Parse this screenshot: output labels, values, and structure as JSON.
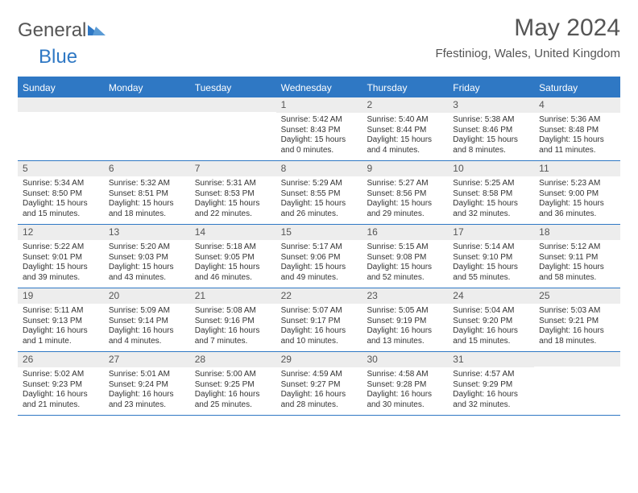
{
  "logo": {
    "text1": "General",
    "text2": "Blue"
  },
  "header": {
    "month_title": "May 2024",
    "location": "Ffestiniog, Wales, United Kingdom"
  },
  "colors": {
    "accent": "#2f78c4",
    "header_bg": "#ededed",
    "page_bg": "#ffffff",
    "text": "#333333",
    "muted": "#555555"
  },
  "calendar": {
    "type": "table",
    "days_of_week": [
      "Sunday",
      "Monday",
      "Tuesday",
      "Wednesday",
      "Thursday",
      "Friday",
      "Saturday"
    ],
    "weeks": [
      [
        {
          "day": "",
          "sunrise": "",
          "sunset": "",
          "daylight": ""
        },
        {
          "day": "",
          "sunrise": "",
          "sunset": "",
          "daylight": ""
        },
        {
          "day": "",
          "sunrise": "",
          "sunset": "",
          "daylight": ""
        },
        {
          "day": "1",
          "sunrise": "Sunrise: 5:42 AM",
          "sunset": "Sunset: 8:43 PM",
          "daylight": "Daylight: 15 hours and 0 minutes."
        },
        {
          "day": "2",
          "sunrise": "Sunrise: 5:40 AM",
          "sunset": "Sunset: 8:44 PM",
          "daylight": "Daylight: 15 hours and 4 minutes."
        },
        {
          "day": "3",
          "sunrise": "Sunrise: 5:38 AM",
          "sunset": "Sunset: 8:46 PM",
          "daylight": "Daylight: 15 hours and 8 minutes."
        },
        {
          "day": "4",
          "sunrise": "Sunrise: 5:36 AM",
          "sunset": "Sunset: 8:48 PM",
          "daylight": "Daylight: 15 hours and 11 minutes."
        }
      ],
      [
        {
          "day": "5",
          "sunrise": "Sunrise: 5:34 AM",
          "sunset": "Sunset: 8:50 PM",
          "daylight": "Daylight: 15 hours and 15 minutes."
        },
        {
          "day": "6",
          "sunrise": "Sunrise: 5:32 AM",
          "sunset": "Sunset: 8:51 PM",
          "daylight": "Daylight: 15 hours and 18 minutes."
        },
        {
          "day": "7",
          "sunrise": "Sunrise: 5:31 AM",
          "sunset": "Sunset: 8:53 PM",
          "daylight": "Daylight: 15 hours and 22 minutes."
        },
        {
          "day": "8",
          "sunrise": "Sunrise: 5:29 AM",
          "sunset": "Sunset: 8:55 PM",
          "daylight": "Daylight: 15 hours and 26 minutes."
        },
        {
          "day": "9",
          "sunrise": "Sunrise: 5:27 AM",
          "sunset": "Sunset: 8:56 PM",
          "daylight": "Daylight: 15 hours and 29 minutes."
        },
        {
          "day": "10",
          "sunrise": "Sunrise: 5:25 AM",
          "sunset": "Sunset: 8:58 PM",
          "daylight": "Daylight: 15 hours and 32 minutes."
        },
        {
          "day": "11",
          "sunrise": "Sunrise: 5:23 AM",
          "sunset": "Sunset: 9:00 PM",
          "daylight": "Daylight: 15 hours and 36 minutes."
        }
      ],
      [
        {
          "day": "12",
          "sunrise": "Sunrise: 5:22 AM",
          "sunset": "Sunset: 9:01 PM",
          "daylight": "Daylight: 15 hours and 39 minutes."
        },
        {
          "day": "13",
          "sunrise": "Sunrise: 5:20 AM",
          "sunset": "Sunset: 9:03 PM",
          "daylight": "Daylight: 15 hours and 43 minutes."
        },
        {
          "day": "14",
          "sunrise": "Sunrise: 5:18 AM",
          "sunset": "Sunset: 9:05 PM",
          "daylight": "Daylight: 15 hours and 46 minutes."
        },
        {
          "day": "15",
          "sunrise": "Sunrise: 5:17 AM",
          "sunset": "Sunset: 9:06 PM",
          "daylight": "Daylight: 15 hours and 49 minutes."
        },
        {
          "day": "16",
          "sunrise": "Sunrise: 5:15 AM",
          "sunset": "Sunset: 9:08 PM",
          "daylight": "Daylight: 15 hours and 52 minutes."
        },
        {
          "day": "17",
          "sunrise": "Sunrise: 5:14 AM",
          "sunset": "Sunset: 9:10 PM",
          "daylight": "Daylight: 15 hours and 55 minutes."
        },
        {
          "day": "18",
          "sunrise": "Sunrise: 5:12 AM",
          "sunset": "Sunset: 9:11 PM",
          "daylight": "Daylight: 15 hours and 58 minutes."
        }
      ],
      [
        {
          "day": "19",
          "sunrise": "Sunrise: 5:11 AM",
          "sunset": "Sunset: 9:13 PM",
          "daylight": "Daylight: 16 hours and 1 minute."
        },
        {
          "day": "20",
          "sunrise": "Sunrise: 5:09 AM",
          "sunset": "Sunset: 9:14 PM",
          "daylight": "Daylight: 16 hours and 4 minutes."
        },
        {
          "day": "21",
          "sunrise": "Sunrise: 5:08 AM",
          "sunset": "Sunset: 9:16 PM",
          "daylight": "Daylight: 16 hours and 7 minutes."
        },
        {
          "day": "22",
          "sunrise": "Sunrise: 5:07 AM",
          "sunset": "Sunset: 9:17 PM",
          "daylight": "Daylight: 16 hours and 10 minutes."
        },
        {
          "day": "23",
          "sunrise": "Sunrise: 5:05 AM",
          "sunset": "Sunset: 9:19 PM",
          "daylight": "Daylight: 16 hours and 13 minutes."
        },
        {
          "day": "24",
          "sunrise": "Sunrise: 5:04 AM",
          "sunset": "Sunset: 9:20 PM",
          "daylight": "Daylight: 16 hours and 15 minutes."
        },
        {
          "day": "25",
          "sunrise": "Sunrise: 5:03 AM",
          "sunset": "Sunset: 9:21 PM",
          "daylight": "Daylight: 16 hours and 18 minutes."
        }
      ],
      [
        {
          "day": "26",
          "sunrise": "Sunrise: 5:02 AM",
          "sunset": "Sunset: 9:23 PM",
          "daylight": "Daylight: 16 hours and 21 minutes."
        },
        {
          "day": "27",
          "sunrise": "Sunrise: 5:01 AM",
          "sunset": "Sunset: 9:24 PM",
          "daylight": "Daylight: 16 hours and 23 minutes."
        },
        {
          "day": "28",
          "sunrise": "Sunrise: 5:00 AM",
          "sunset": "Sunset: 9:25 PM",
          "daylight": "Daylight: 16 hours and 25 minutes."
        },
        {
          "day": "29",
          "sunrise": "Sunrise: 4:59 AM",
          "sunset": "Sunset: 9:27 PM",
          "daylight": "Daylight: 16 hours and 28 minutes."
        },
        {
          "day": "30",
          "sunrise": "Sunrise: 4:58 AM",
          "sunset": "Sunset: 9:28 PM",
          "daylight": "Daylight: 16 hours and 30 minutes."
        },
        {
          "day": "31",
          "sunrise": "Sunrise: 4:57 AM",
          "sunset": "Sunset: 9:29 PM",
          "daylight": "Daylight: 16 hours and 32 minutes."
        },
        {
          "day": "",
          "sunrise": "",
          "sunset": "",
          "daylight": ""
        }
      ]
    ]
  }
}
